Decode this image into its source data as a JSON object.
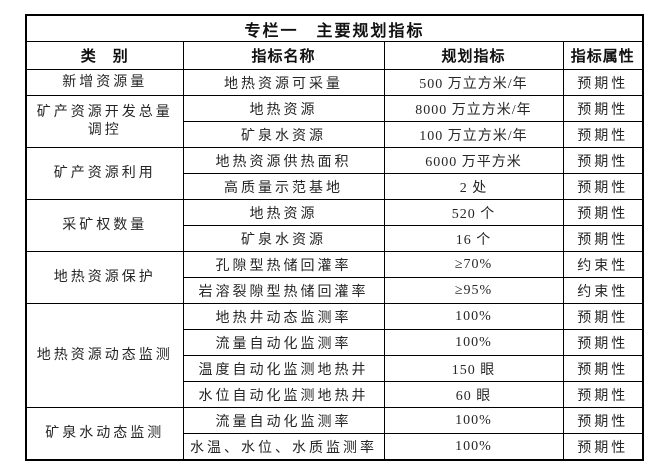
{
  "table": {
    "title": "专栏一　主要规划指标",
    "headers": {
      "category": "类　别",
      "indicator_name": "指标名称",
      "planning_indicator": "规划指标",
      "indicator_attribute": "指标属性"
    },
    "groups": [
      {
        "category": "新增资源量",
        "rows": [
          {
            "name": "地热资源可采量",
            "value": "500 万立方米/年",
            "attribute": "预期性"
          }
        ]
      },
      {
        "category": "矿产资源开发总量调控",
        "rows": [
          {
            "name": "地热资源",
            "value": "8000 万立方米/年",
            "attribute": "预期性"
          },
          {
            "name": "矿泉水资源",
            "value": "100 万立方米/年",
            "attribute": "预期性"
          }
        ]
      },
      {
        "category": "矿产资源利用",
        "rows": [
          {
            "name": "地热资源供热面积",
            "value": "6000 万平方米",
            "attribute": "预期性"
          },
          {
            "name": "高质量示范基地",
            "value": "2 处",
            "attribute": "预期性"
          }
        ]
      },
      {
        "category": "采矿权数量",
        "rows": [
          {
            "name": "地热资源",
            "value": "520 个",
            "attribute": "预期性"
          },
          {
            "name": "矿泉水资源",
            "value": "16 个",
            "attribute": "预期性"
          }
        ]
      },
      {
        "category": "地热资源保护",
        "rows": [
          {
            "name": "孔隙型热储回灌率",
            "value": "≥70%",
            "attribute": "约束性"
          },
          {
            "name": "岩溶裂隙型热储回灌率",
            "value": "≥95%",
            "attribute": "约束性"
          }
        ]
      },
      {
        "category": "地热资源动态监测",
        "rows": [
          {
            "name": "地热井动态监测率",
            "value": "100%",
            "attribute": "预期性"
          },
          {
            "name": "流量自动化监测率",
            "value": "100%",
            "attribute": "预期性"
          },
          {
            "name": "温度自动化监测地热井",
            "value": "150 眼",
            "attribute": "预期性"
          },
          {
            "name": "水位自动化监测地热井",
            "value": "60 眼",
            "attribute": "预期性"
          }
        ]
      },
      {
        "category": "矿泉水动态监测",
        "rows": [
          {
            "name": "流量自动化监测率",
            "value": "100%",
            "attribute": "预期性"
          },
          {
            "name": "水温、水位、水质监测率",
            "value": "100%",
            "attribute": "预期性"
          }
        ]
      }
    ]
  }
}
